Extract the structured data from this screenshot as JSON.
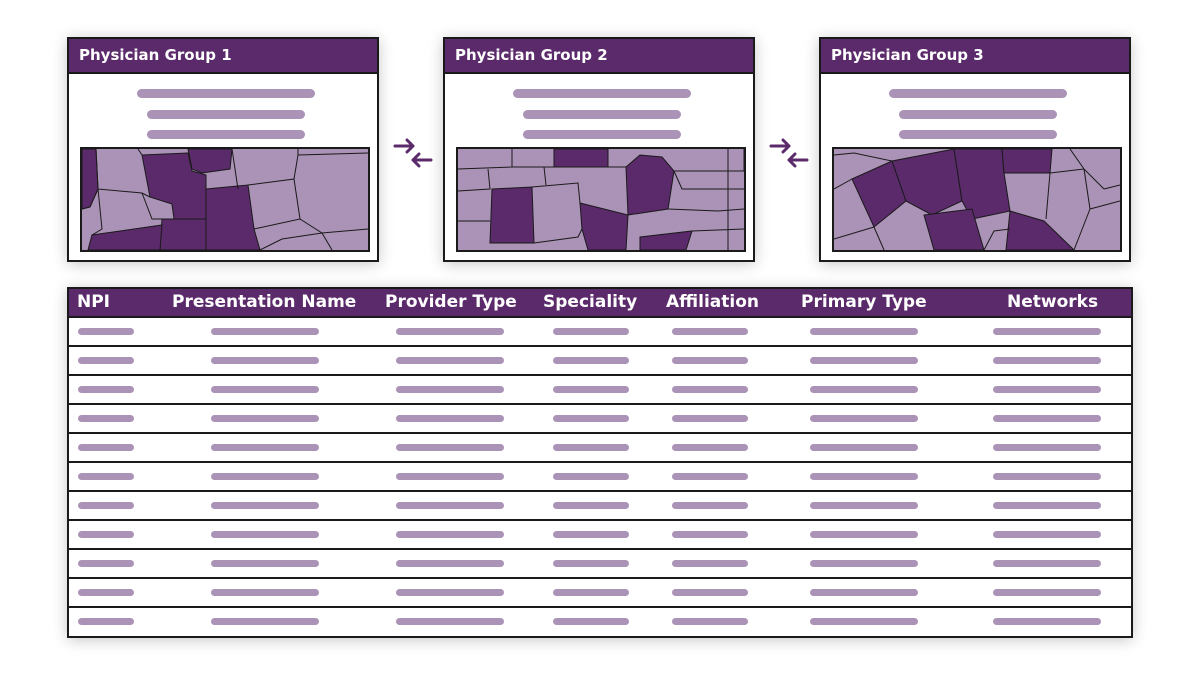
{
  "colors": {
    "header_bg": "#5b2a6b",
    "placeholder": "#ab92b7",
    "map_dark": "#5b2a6b",
    "map_light": "#ab92b7",
    "arrow": "#5b2a6b",
    "border": "#1a1a1a"
  },
  "groups": [
    {
      "title": "Physician Group 1"
    },
    {
      "title": "Physician Group 2"
    },
    {
      "title": "Physician Group 3"
    }
  ],
  "connectors": [
    {
      "icon": "swap-arrows-icon"
    },
    {
      "icon": "swap-arrows-icon"
    }
  ],
  "table": {
    "columns": [
      "NPI",
      "Presentation Name",
      "Provider Type",
      "Speciality",
      "Affiliation",
      "Primary Type",
      "Networks"
    ],
    "row_count": 11
  }
}
